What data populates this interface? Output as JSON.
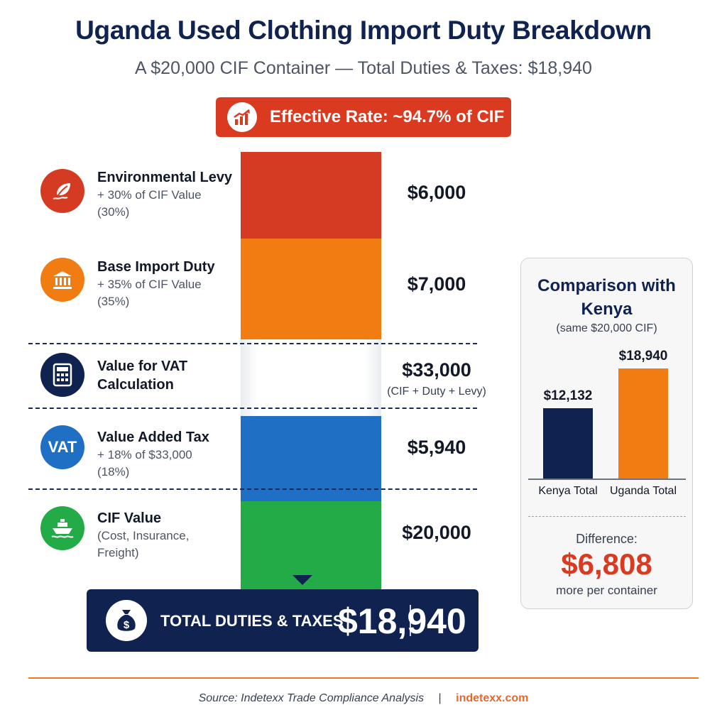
{
  "title": "Uganda Used Clothing Import Duty Breakdown",
  "subtitle": "A $20,000 CIF Container — Total Duties & Taxes: $18,940",
  "effective_rate": "Effective Rate: ~94.7% of CIF",
  "colors": {
    "levy": "#d53a22",
    "duty": "#f07c12",
    "vat": "#1f6fc4",
    "cif": "#22ab47",
    "navy": "#10224f",
    "accent": "#d93a20"
  },
  "rows": {
    "levy": {
      "title": "Environmental Levy",
      "sub1": "+ 30% of CIF Value",
      "sub2": "(30%)",
      "value": "$6,000",
      "icon": "leaf-icon"
    },
    "duty": {
      "title": "Base Import Duty",
      "sub1": "+ 35% of CIF Value",
      "sub2": "(35%)",
      "value": "$7,000",
      "icon": "building-icon"
    },
    "vat_base": {
      "title1": "Value for VAT",
      "title2": "Calculation",
      "value": "$33,000",
      "note": "(CIF + Duty + Levy)",
      "icon": "calculator-icon"
    },
    "vat": {
      "title": "Value Added Tax",
      "sub1": "+ 18% of $33,000",
      "sub2": "(18%)",
      "value": "$5,940",
      "icon_text": "VAT"
    },
    "cif": {
      "title": "CIF Value",
      "sub1": "(Cost, Insurance,",
      "sub2": "Freight)",
      "value": "$20,000",
      "icon": "ship-icon"
    }
  },
  "total": {
    "label": "TOTAL DUTIES & TAXES",
    "value": "$18,940",
    "icon": "money-bag-icon"
  },
  "comparison": {
    "title_line1": "Comparison with",
    "title_line2": "Kenya",
    "note": "(same $20,000 CIF)",
    "difference_label": "Difference:",
    "difference_value": "$6,808",
    "difference_note": "more per container"
  },
  "chart_data": [
    {
      "type": "bar",
      "stacked": true,
      "categories": [
        "Uganda $20,000 CIF Container"
      ],
      "series": [
        {
          "name": "CIF Value",
          "values": [
            20000
          ]
        },
        {
          "name": "Value Added Tax",
          "values": [
            5940
          ]
        },
        {
          "name": "Base Import Duty",
          "values": [
            7000
          ]
        },
        {
          "name": "Environmental Levy",
          "values": [
            6000
          ]
        }
      ],
      "annotations": [
        "Value for VAT Calculation $33,000 (CIF + Duty + Levy)"
      ],
      "title": "Uganda Used Clothing Import Duty Breakdown"
    },
    {
      "type": "bar",
      "categories": [
        "Kenya Total",
        "Uganda Total"
      ],
      "values": [
        12132,
        18940
      ],
      "labels": [
        "$12,132",
        "$18,940"
      ],
      "title": "Comparison with Kenya"
    }
  ],
  "footer": {
    "source": "Source: Indetexx Trade Compliance Analysis",
    "separator": "|",
    "link": "indetexx.com"
  }
}
